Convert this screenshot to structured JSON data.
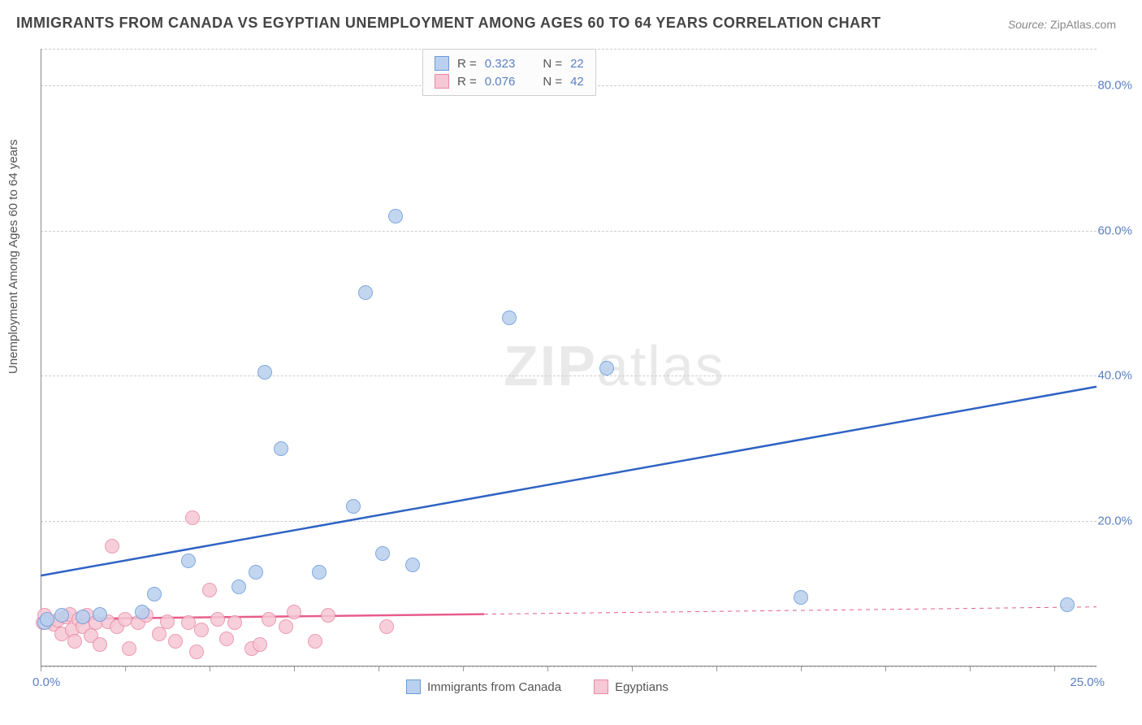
{
  "title": "IMMIGRANTS FROM CANADA VS EGYPTIAN UNEMPLOYMENT AMONG AGES 60 TO 64 YEARS CORRELATION CHART",
  "source_label": "Source:",
  "source_value": "ZipAtlas.com",
  "ylabel": "Unemployment Among Ages 60 to 64 years",
  "watermark_a": "ZIP",
  "watermark_b": "atlas",
  "chart": {
    "type": "scatter",
    "xlim": [
      0,
      25
    ],
    "ylim": [
      0,
      85
    ],
    "x_origin_label": "0.0%",
    "x_end_label": "25.0%",
    "y_ticks": [
      20,
      40,
      60,
      80
    ],
    "y_tick_labels": [
      "20.0%",
      "40.0%",
      "60.0%",
      "80.0%"
    ],
    "y_gridlines": [
      0,
      20,
      40,
      60,
      80,
      85
    ],
    "x_minor_ticks": [
      0,
      2,
      4,
      6,
      8,
      10,
      12,
      14,
      16,
      18,
      20,
      22,
      24
    ],
    "background": "#ffffff",
    "grid_color": "#cccccc",
    "axis_color": "#888888",
    "series": [
      {
        "key": "canada",
        "label": "Immigrants from Canada",
        "color_fill": "#b9d0ee",
        "color_stroke": "#6a9bd8",
        "marker_size": 18,
        "r": "0.323",
        "n": "22",
        "points": [
          [
            0.1,
            6.0
          ],
          [
            0.15,
            6.5
          ],
          [
            0.5,
            7.0
          ],
          [
            1.0,
            6.8
          ],
          [
            1.4,
            7.2
          ],
          [
            2.4,
            7.5
          ],
          [
            2.7,
            10.0
          ],
          [
            3.5,
            14.5
          ],
          [
            4.7,
            11.0
          ],
          [
            5.1,
            13.0
          ],
          [
            5.3,
            40.5
          ],
          [
            5.7,
            30.0
          ],
          [
            6.6,
            13.0
          ],
          [
            7.4,
            22.0
          ],
          [
            7.7,
            51.5
          ],
          [
            8.1,
            15.5
          ],
          [
            8.4,
            62.0
          ],
          [
            8.8,
            14.0
          ],
          [
            11.1,
            48.0
          ],
          [
            13.4,
            41.0
          ],
          [
            18.0,
            9.5
          ],
          [
            24.3,
            8.5
          ]
        ],
        "trend": {
          "x1": 0,
          "y1": 12.5,
          "x2": 25,
          "y2": 38.5,
          "stroke": "#2f63c4",
          "width": 2.5
        }
      },
      {
        "key": "egypt",
        "label": "Egyptians",
        "color_fill": "#f6c7d4",
        "color_stroke": "#e88aa6",
        "marker_size": 18,
        "r": "0.076",
        "n": "42",
        "points": [
          [
            0.05,
            6.0
          ],
          [
            0.1,
            7.0
          ],
          [
            0.2,
            6.2
          ],
          [
            0.3,
            5.8
          ],
          [
            0.4,
            6.4
          ],
          [
            0.5,
            4.5
          ],
          [
            0.6,
            6.8
          ],
          [
            0.7,
            7.2
          ],
          [
            0.75,
            5.0
          ],
          [
            0.8,
            3.5
          ],
          [
            0.9,
            6.5
          ],
          [
            1.0,
            5.5
          ],
          [
            1.1,
            7.0
          ],
          [
            1.2,
            4.2
          ],
          [
            1.3,
            6.0
          ],
          [
            1.4,
            3.0
          ],
          [
            1.6,
            6.2
          ],
          [
            1.7,
            16.5
          ],
          [
            1.8,
            5.5
          ],
          [
            2.0,
            6.5
          ],
          [
            2.1,
            2.5
          ],
          [
            2.3,
            6.0
          ],
          [
            2.5,
            7.0
          ],
          [
            2.8,
            4.5
          ],
          [
            3.0,
            6.2
          ],
          [
            3.2,
            3.5
          ],
          [
            3.5,
            6.0
          ],
          [
            3.6,
            20.5
          ],
          [
            3.7,
            2.0
          ],
          [
            3.8,
            5.0
          ],
          [
            4.0,
            10.5
          ],
          [
            4.2,
            6.5
          ],
          [
            4.4,
            3.8
          ],
          [
            4.6,
            6.0
          ],
          [
            5.0,
            2.5
          ],
          [
            5.2,
            3.0
          ],
          [
            5.4,
            6.5
          ],
          [
            5.8,
            5.5
          ],
          [
            6.0,
            7.5
          ],
          [
            6.5,
            3.5
          ],
          [
            6.8,
            7.0
          ],
          [
            8.2,
            5.5
          ]
        ],
        "trend_solid": {
          "x1": 0,
          "y1": 6.5,
          "x2": 10.5,
          "y2": 7.2,
          "stroke": "#e85d8a",
          "width": 2.5
        },
        "trend_dash": {
          "x1": 10.5,
          "y1": 7.2,
          "x2": 25,
          "y2": 8.2,
          "stroke": "#e85d8a",
          "width": 1,
          "dash": "5,5"
        }
      }
    ]
  },
  "legend_top": {
    "r_prefix": "R =",
    "n_prefix": "N ="
  }
}
